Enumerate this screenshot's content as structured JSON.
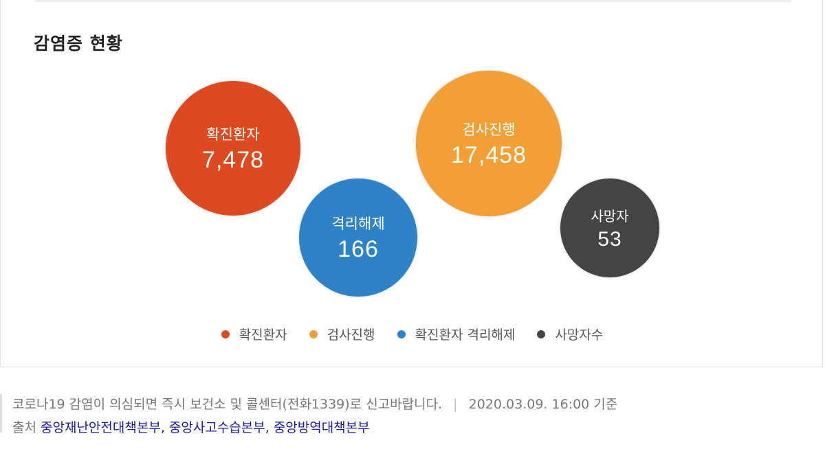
{
  "title": "감염증 현황",
  "chart_data": {
    "type": "bubble",
    "bubbles": [
      {
        "label": "확진환자",
        "value": 7478,
        "display": "7,478",
        "color": "#dd4a1f"
      },
      {
        "label": "격리해제",
        "value": 166,
        "display": "166",
        "color": "#2d82c8"
      },
      {
        "label": "검사진행",
        "value": 17458,
        "display": "17,458",
        "color": "#f29f35"
      },
      {
        "label": "사망자",
        "value": 53,
        "display": "53",
        "color": "#444444"
      }
    ],
    "legend": [
      {
        "label": "확진환자",
        "color": "#dd4a1f"
      },
      {
        "label": "검사진행",
        "color": "#f29f35"
      },
      {
        "label": "확진환자 격리해제",
        "color": "#2d82c8"
      },
      {
        "label": "사망자수",
        "color": "#444444"
      }
    ]
  },
  "footer": {
    "notice": "코로나19 감염이 의심되면 즉시 보건소 및 콜센터(전화1339)로 신고바랍니다.",
    "separator": "|",
    "timestamp": "2020.03.09. 16:00 기준",
    "source_label": "출처",
    "sources": "중앙재난안전대책본부, 중앙사고수습본부, 중앙방역대책본부"
  }
}
